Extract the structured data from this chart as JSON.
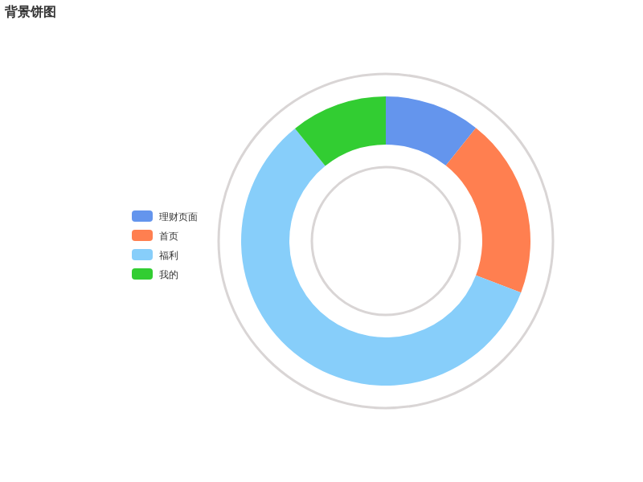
{
  "chart_data": {
    "type": "donut",
    "title": "背景饼图",
    "categories": [
      "理财页面",
      "首页",
      "福利",
      "我的"
    ],
    "values": [
      10.7,
      20.1,
      58.4,
      10.8
    ],
    "colors": [
      "#6495ed",
      "#ff7f50",
      "#87cefa",
      "#32cd32"
    ],
    "legend": "left"
  }
}
